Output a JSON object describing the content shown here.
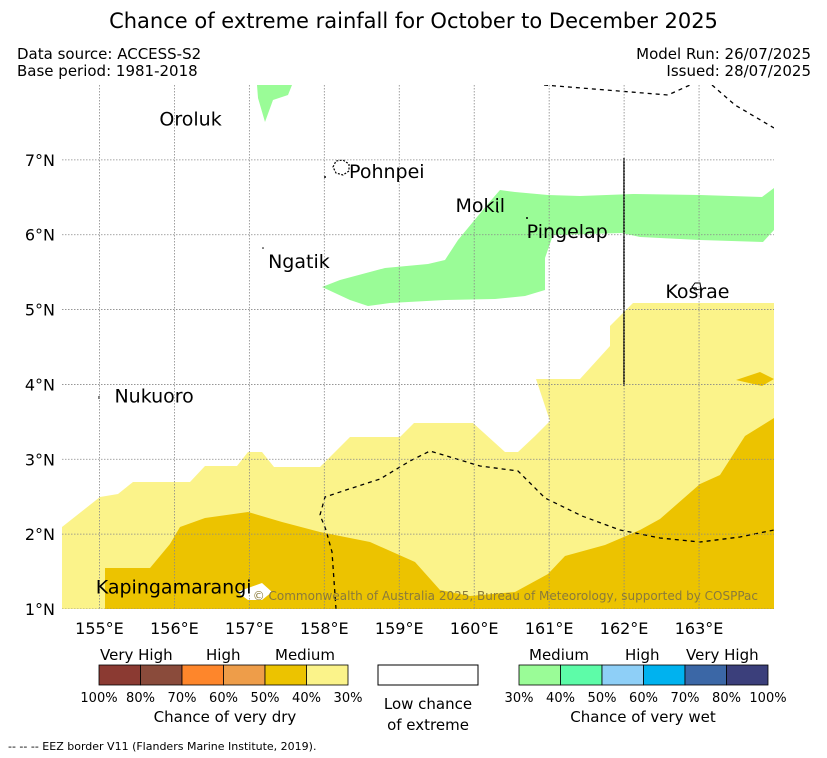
{
  "title": "Chance of extreme rainfall for October to December 2025",
  "meta": {
    "data_source": "Data source: ACCESS-S2",
    "base_period": "Base period: 1981-2018",
    "model_run": "Model Run: 26/07/2025",
    "issued": "Issued: 28/07/2025"
  },
  "map": {
    "lon_range": [
      154.5,
      164.0
    ],
    "lat_range": [
      1.0,
      8.0
    ],
    "lon_ticks": [
      "155°E",
      "156°E",
      "157°E",
      "158°E",
      "159°E",
      "160°E",
      "161°E",
      "162°E",
      "163°E"
    ],
    "lat_ticks": [
      "1°N",
      "2°N",
      "3°N",
      "4°N",
      "5°N",
      "6°N",
      "7°N"
    ],
    "places": [
      {
        "name": "Oroluk",
        "lon": 155.8,
        "lat": 7.55
      },
      {
        "name": "Pohnpei",
        "lon": 158.33,
        "lat": 6.85
      },
      {
        "name": "Mokil",
        "lon": 159.75,
        "lat": 6.4
      },
      {
        "name": "Pingelap",
        "lon": 160.7,
        "lat": 6.05
      },
      {
        "name": "Ngatik",
        "lon": 157.25,
        "lat": 5.65
      },
      {
        "name": "Kosrae",
        "lon": 162.55,
        "lat": 5.25
      },
      {
        "name": "Nukuoro",
        "lon": 155.2,
        "lat": 3.85
      },
      {
        "name": "Kapingamarangi",
        "lon": 154.95,
        "lat": 1.3
      }
    ],
    "copyright": "© Commonwealth of Australia 2025, Bureau of Meteorology, supported by COSPPac",
    "colors": {
      "dry_medium_light": "#fbf38a",
      "dry_medium": "#ecc300",
      "wet_medium": "#9afc97",
      "land": "#000000",
      "eez": "#000000"
    }
  },
  "legend": {
    "dry": {
      "categories": [
        "Very High",
        "High",
        "Medium"
      ],
      "colors": [
        "#8b3a32",
        "#8a4b3b",
        "#fe862b",
        "#ee9d49",
        "#ecc300",
        "#fbf38a"
      ],
      "ticks": [
        "100%",
        "80%",
        "70%",
        "60%",
        "50%",
        "40%",
        "30%"
      ],
      "caption": "Chance of very dry"
    },
    "neutral": {
      "caption_line1": "Low chance",
      "caption_line2": "of extreme"
    },
    "wet": {
      "categories": [
        "Medium",
        "High",
        "Very High"
      ],
      "colors": [
        "#9afc97",
        "#5dfca8",
        "#8ecff7",
        "#00b2ef",
        "#3b67a6",
        "#3b3f7b"
      ],
      "ticks": [
        "30%",
        "40%",
        "50%",
        "60%",
        "70%",
        "80%",
        "100%"
      ],
      "caption": "Chance of very wet"
    }
  },
  "footnote": "--  --  -- EEZ border V11 (Flanders Marine Institute, 2019)."
}
